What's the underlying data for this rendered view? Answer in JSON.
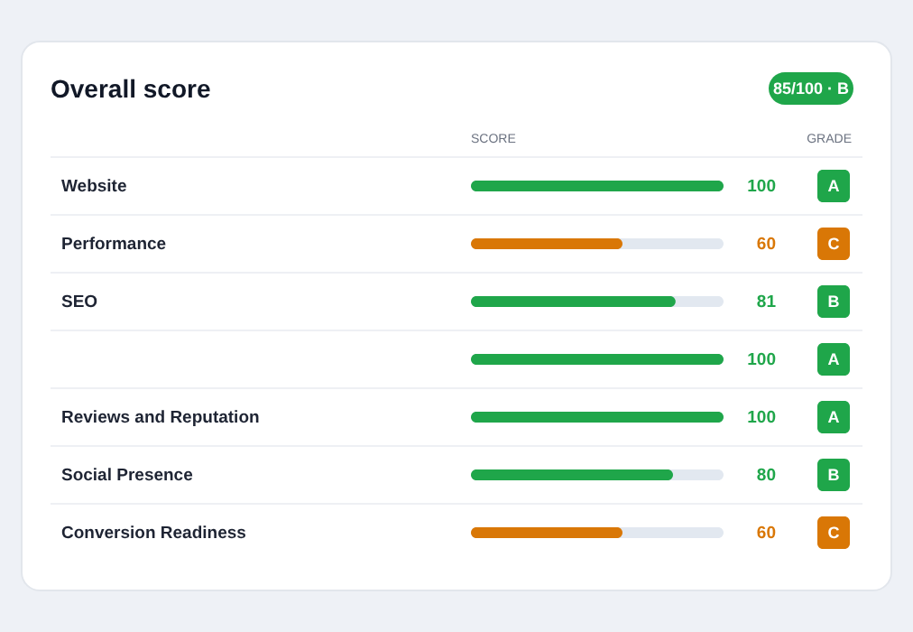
{
  "chart_data": {
    "type": "bar",
    "orientation": "horizontal",
    "title": "Overall score",
    "categories": [
      "Website",
      "Performance",
      "SEO",
      null,
      "Reviews and Reputation",
      "Social Presence",
      "Conversion Readiness"
    ],
    "values": [
      100,
      60,
      81,
      100,
      100,
      80,
      60
    ],
    "colors": [
      "#1fa64a",
      "#d97706",
      "#1fa64a",
      "#1fa64a",
      "#1fa64a",
      "#1fa64a",
      "#d97706"
    ],
    "xlim": [
      0,
      100
    ],
    "tick_labels": false,
    "data_labels": true,
    "annotations": [
      "85/100 · B",
      "SCORE",
      "GRADE",
      "A",
      "C",
      "B",
      "A",
      "A",
      "B",
      "C"
    ]
  }
}
